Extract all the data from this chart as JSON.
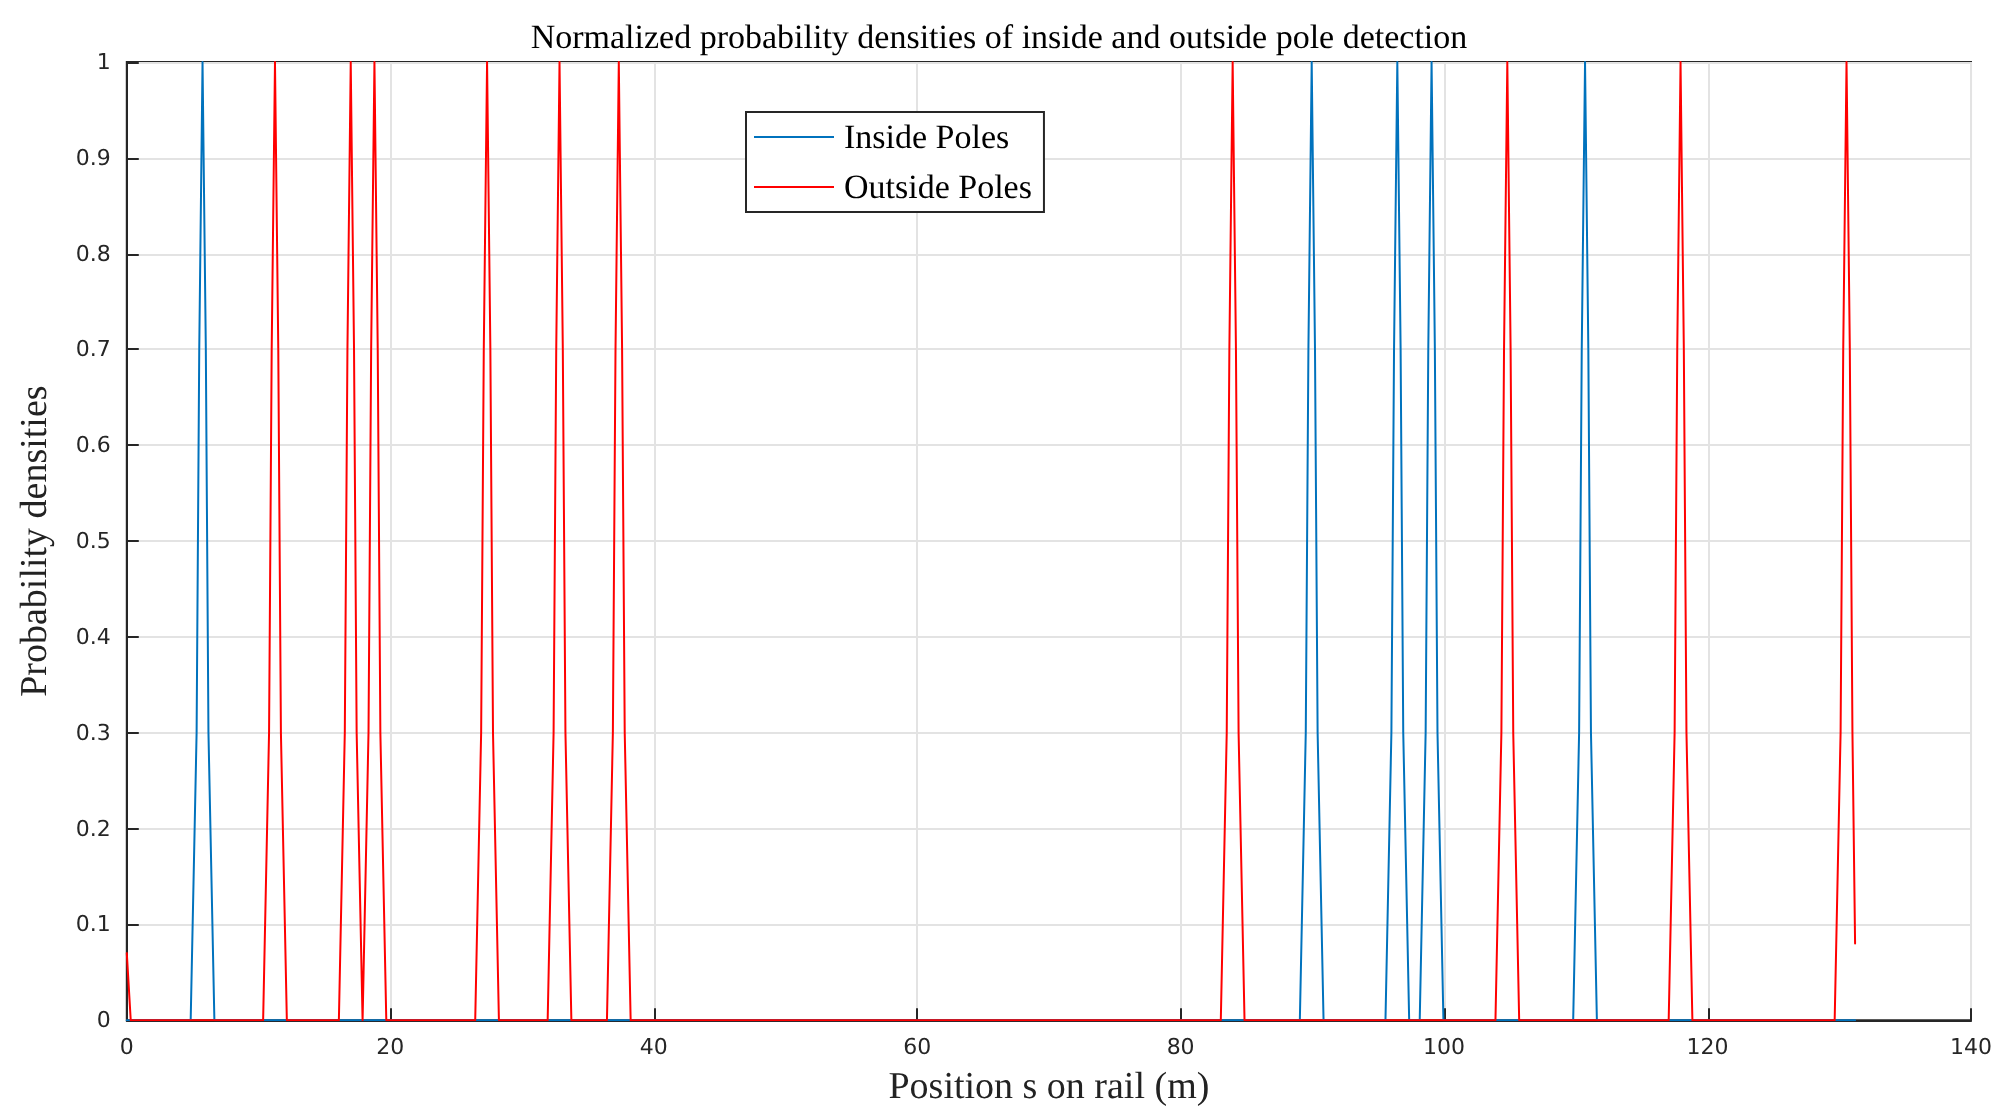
{
  "chart_data": {
    "type": "line",
    "title": "Normalized probability densities of inside and outside pole detection",
    "xlabel": "Position s on rail (m)",
    "ylabel": "Probability densities",
    "xlim": [
      0,
      140
    ],
    "xticks": [
      0,
      20,
      40,
      60,
      80,
      100,
      120,
      140
    ],
    "ylim": [
      0,
      1
    ],
    "yticks": [
      0,
      0.1,
      0.2,
      0.3,
      0.4,
      0.5,
      0.6,
      0.7,
      0.8,
      0.9,
      1
    ],
    "grid": true,
    "legend": "top",
    "series": [
      {
        "name": "Inside Poles",
        "color": "#0072bd",
        "x": [
          0,
          4.85,
          5.3,
          5.5,
          5.75,
          6.0,
          6.2,
          6.65,
          89.05,
          89.5,
          89.7,
          89.95,
          90.2,
          90.4,
          90.85,
          95.55,
          96.0,
          96.2,
          96.45,
          96.7,
          96.9,
          97.35,
          98.15,
          98.6,
          98.8,
          99.05,
          99.3,
          99.5,
          99.95,
          109.8,
          110.25,
          110.45,
          110.7,
          110.95,
          111.15,
          111.6,
          131.2
        ],
        "values": [
          0,
          0,
          0.3,
          0.7,
          1,
          0.7,
          0.3,
          0,
          0,
          0.3,
          0.7,
          1,
          0.7,
          0.3,
          0,
          0,
          0.3,
          0.7,
          1,
          0.7,
          0.3,
          0,
          0,
          0.3,
          0.7,
          1,
          0.7,
          0.3,
          0,
          0,
          0.3,
          0.7,
          1,
          0.7,
          0.3,
          0,
          0
        ]
      },
      {
        "name": "Outside Poles",
        "color": "#ff0000",
        "x": [
          0,
          0.3,
          10.35,
          10.8,
          11.0,
          11.25,
          11.5,
          11.7,
          12.15,
          16.1,
          16.55,
          16.75,
          17.0,
          17.25,
          17.45,
          17.9,
          18.35,
          18.55,
          18.8,
          19.05,
          19.25,
          19.7,
          26.45,
          26.9,
          27.1,
          27.35,
          27.6,
          27.8,
          28.25,
          31.95,
          32.4,
          32.6,
          32.85,
          33.1,
          33.3,
          33.75,
          36.45,
          36.9,
          37.1,
          37.35,
          37.6,
          37.8,
          38.25,
          83.05,
          83.5,
          83.7,
          83.95,
          84.2,
          84.4,
          84.85,
          103.9,
          104.35,
          104.55,
          104.8,
          105.05,
          105.25,
          105.7,
          117.05,
          117.5,
          117.7,
          117.95,
          118.2,
          118.4,
          118.85,
          129.65,
          130.1,
          130.3,
          130.55,
          130.8,
          131.0,
          131.2
        ],
        "values": [
          0.07,
          0,
          0,
          0.3,
          0.7,
          1,
          0.7,
          0.3,
          0,
          0,
          0.3,
          0.7,
          1,
          0.7,
          0.3,
          0,
          0.3,
          0.7,
          1,
          0.7,
          0.3,
          0,
          0,
          0.3,
          0.7,
          1,
          0.7,
          0.3,
          0,
          0,
          0.3,
          0.7,
          1,
          0.7,
          0.3,
          0,
          0,
          0.3,
          0.7,
          1,
          0.7,
          0.3,
          0,
          0,
          0.3,
          0.7,
          1,
          0.7,
          0.3,
          0,
          0,
          0.3,
          0.7,
          1,
          0.7,
          0.3,
          0,
          0,
          0.3,
          0.7,
          1,
          0.7,
          0.3,
          0,
          0,
          0.3,
          0.7,
          1,
          0.7,
          0.3,
          0.08
        ]
      }
    ]
  }
}
